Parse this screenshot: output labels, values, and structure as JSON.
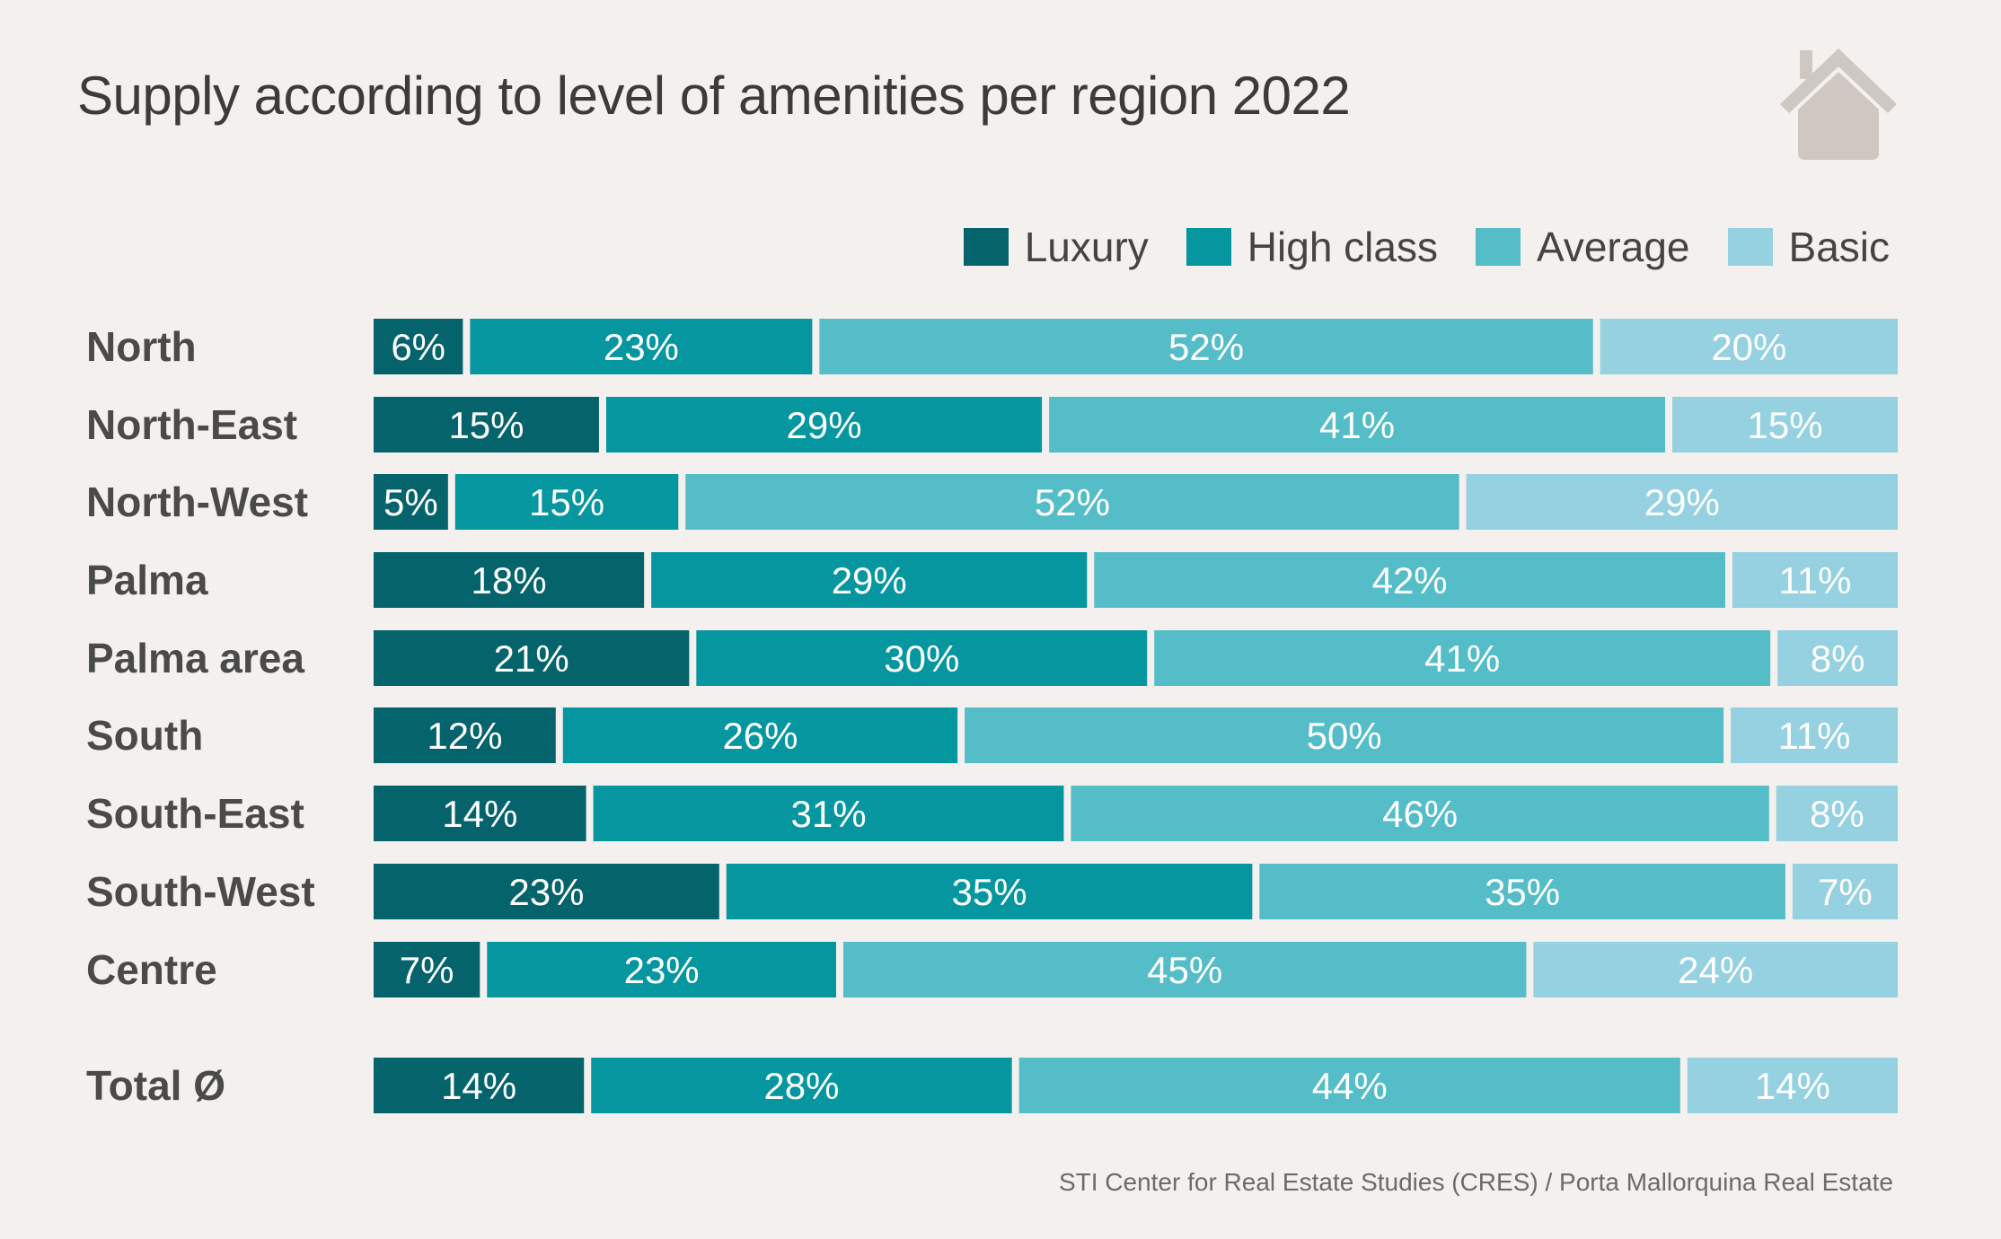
{
  "title": "Supply according to level of amenities per region 2022",
  "source": "STI Center for Real Estate Studies (CRES) / Porta Mallorquina Real Estate",
  "logo_icon": "house-icon",
  "colors": {
    "background": "#f3f0ed",
    "Luxury": "#04636b",
    "High class": "#0596a0",
    "Average": "#54bdc8",
    "Basic": "#95d1e1",
    "house": "#cfc7c2"
  },
  "legend": [
    {
      "name": "Luxury"
    },
    {
      "name": "High class"
    },
    {
      "name": "Average"
    },
    {
      "name": "Basic"
    }
  ],
  "chart_data": {
    "type": "bar",
    "orientation": "horizontal",
    "stacked": "100%",
    "title": "Supply according to level of amenities per region 2022",
    "categories": [
      "North",
      "North-East",
      "North-West",
      "Palma",
      "Palma area",
      "South",
      "South-East",
      "South-West",
      "Centre",
      "Total Ø"
    ],
    "series": [
      {
        "name": "Luxury",
        "values": [
          6,
          15,
          5,
          18,
          21,
          12,
          14,
          23,
          7,
          14
        ]
      },
      {
        "name": "High class",
        "values": [
          23,
          29,
          15,
          29,
          30,
          26,
          31,
          35,
          23,
          28
        ]
      },
      {
        "name": "Average",
        "values": [
          52,
          41,
          52,
          42,
          41,
          50,
          46,
          35,
          45,
          44
        ]
      },
      {
        "name": "Basic",
        "values": [
          20,
          15,
          29,
          11,
          8,
          11,
          8,
          7,
          24,
          14
        ]
      }
    ],
    "unit": "%",
    "legend_position": "top-right",
    "xlabel": "",
    "ylabel": "",
    "grid": false
  }
}
